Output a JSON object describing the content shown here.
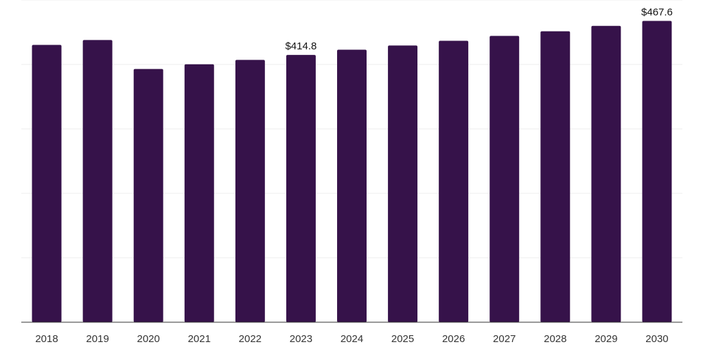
{
  "chart_data": {
    "type": "bar",
    "categories": [
      "2018",
      "2019",
      "2020",
      "2021",
      "2022",
      "2023",
      "2024",
      "2025",
      "2026",
      "2027",
      "2028",
      "2029",
      "2030"
    ],
    "values": [
      430.3,
      437.9,
      393.0,
      400.2,
      407.0,
      414.8,
      422.9,
      429.4,
      436.7,
      444.3,
      451.5,
      459.8,
      467.6
    ],
    "data_labels": [
      {
        "category": "2023",
        "text": "$414.8"
      },
      {
        "category": "2030",
        "text": "$467.6"
      }
    ],
    "ylim": [
      0,
      500
    ],
    "grid": true,
    "bar_color": "#36124a",
    "title": "",
    "xlabel": "",
    "ylabel": ""
  }
}
